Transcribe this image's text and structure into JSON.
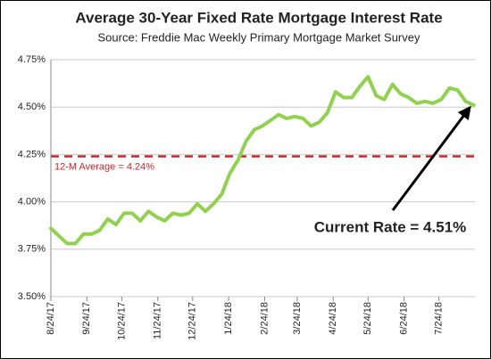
{
  "chart_data": {
    "type": "line",
    "title": "Average 30-Year Fixed Rate Mortgage Interest Rate",
    "subtitle": "Source: Freddie Mac Weekly Primary Mortgage Market Survey",
    "x": [
      "8/24/17",
      "8/31/17",
      "9/7/17",
      "9/14/17",
      "9/21/17",
      "9/28/17",
      "10/5/17",
      "10/12/17",
      "10/19/17",
      "10/26/17",
      "11/2/17",
      "11/9/17",
      "11/16/17",
      "11/23/17",
      "11/30/17",
      "12/7/17",
      "12/14/17",
      "12/21/17",
      "12/28/17",
      "1/4/18",
      "1/11/18",
      "1/18/18",
      "1/25/18",
      "2/1/18",
      "2/8/18",
      "2/15/18",
      "2/22/18",
      "3/1/18",
      "3/8/18",
      "3/15/18",
      "3/22/18",
      "3/29/18",
      "4/5/18",
      "4/12/18",
      "4/19/18",
      "4/26/18",
      "5/3/18",
      "5/10/18",
      "5/17/18",
      "5/24/18",
      "5/31/18",
      "6/7/18",
      "6/14/18",
      "6/21/18",
      "6/28/18",
      "7/5/18",
      "7/12/18",
      "7/19/18",
      "7/26/18",
      "8/2/18",
      "8/9/18",
      "8/16/18",
      "8/23/18"
    ],
    "series": [
      {
        "color": "#92d050",
        "values": [
          3.86,
          3.82,
          3.78,
          3.78,
          3.83,
          3.83,
          3.85,
          3.91,
          3.88,
          3.94,
          3.94,
          3.9,
          3.95,
          3.92,
          3.9,
          3.94,
          3.93,
          3.94,
          3.99,
          3.95,
          3.99,
          4.04,
          4.15,
          4.22,
          4.32,
          4.38,
          4.4,
          4.43,
          4.46,
          4.44,
          4.45,
          4.44,
          4.4,
          4.42,
          4.47,
          4.58,
          4.55,
          4.55,
          4.61,
          4.66,
          4.56,
          4.54,
          4.62,
          4.57,
          4.55,
          4.52,
          4.53,
          4.52,
          4.54,
          4.6,
          4.59,
          4.53,
          4.51
        ]
      }
    ],
    "xlim": [
      "8/24/17",
      "8/24/18"
    ],
    "xticks": [
      "8/24/17",
      "9/24/17",
      "10/24/17",
      "11/24/17",
      "12/24/17",
      "1/24/18",
      "2/24/18",
      "3/24/18",
      "4/24/18",
      "5/24/18",
      "6/24/18",
      "7/24/18"
    ],
    "ylim": [
      3.5,
      4.75
    ],
    "yticks": [
      {
        "value": 3.5,
        "label": "3.50%"
      },
      {
        "value": 3.75,
        "label": "3.75%"
      },
      {
        "value": 4.0,
        "label": "4.00%"
      },
      {
        "value": 4.25,
        "label": "4.25%"
      },
      {
        "value": 4.5,
        "label": "4.50%"
      },
      {
        "value": 4.75,
        "label": "4.75%"
      }
    ],
    "grid": true,
    "reference_line": {
      "value": 4.24,
      "label": "12-M Average = 4.24%",
      "color": "#c0282d"
    },
    "annotation": "Current Rate = 4.51%"
  }
}
